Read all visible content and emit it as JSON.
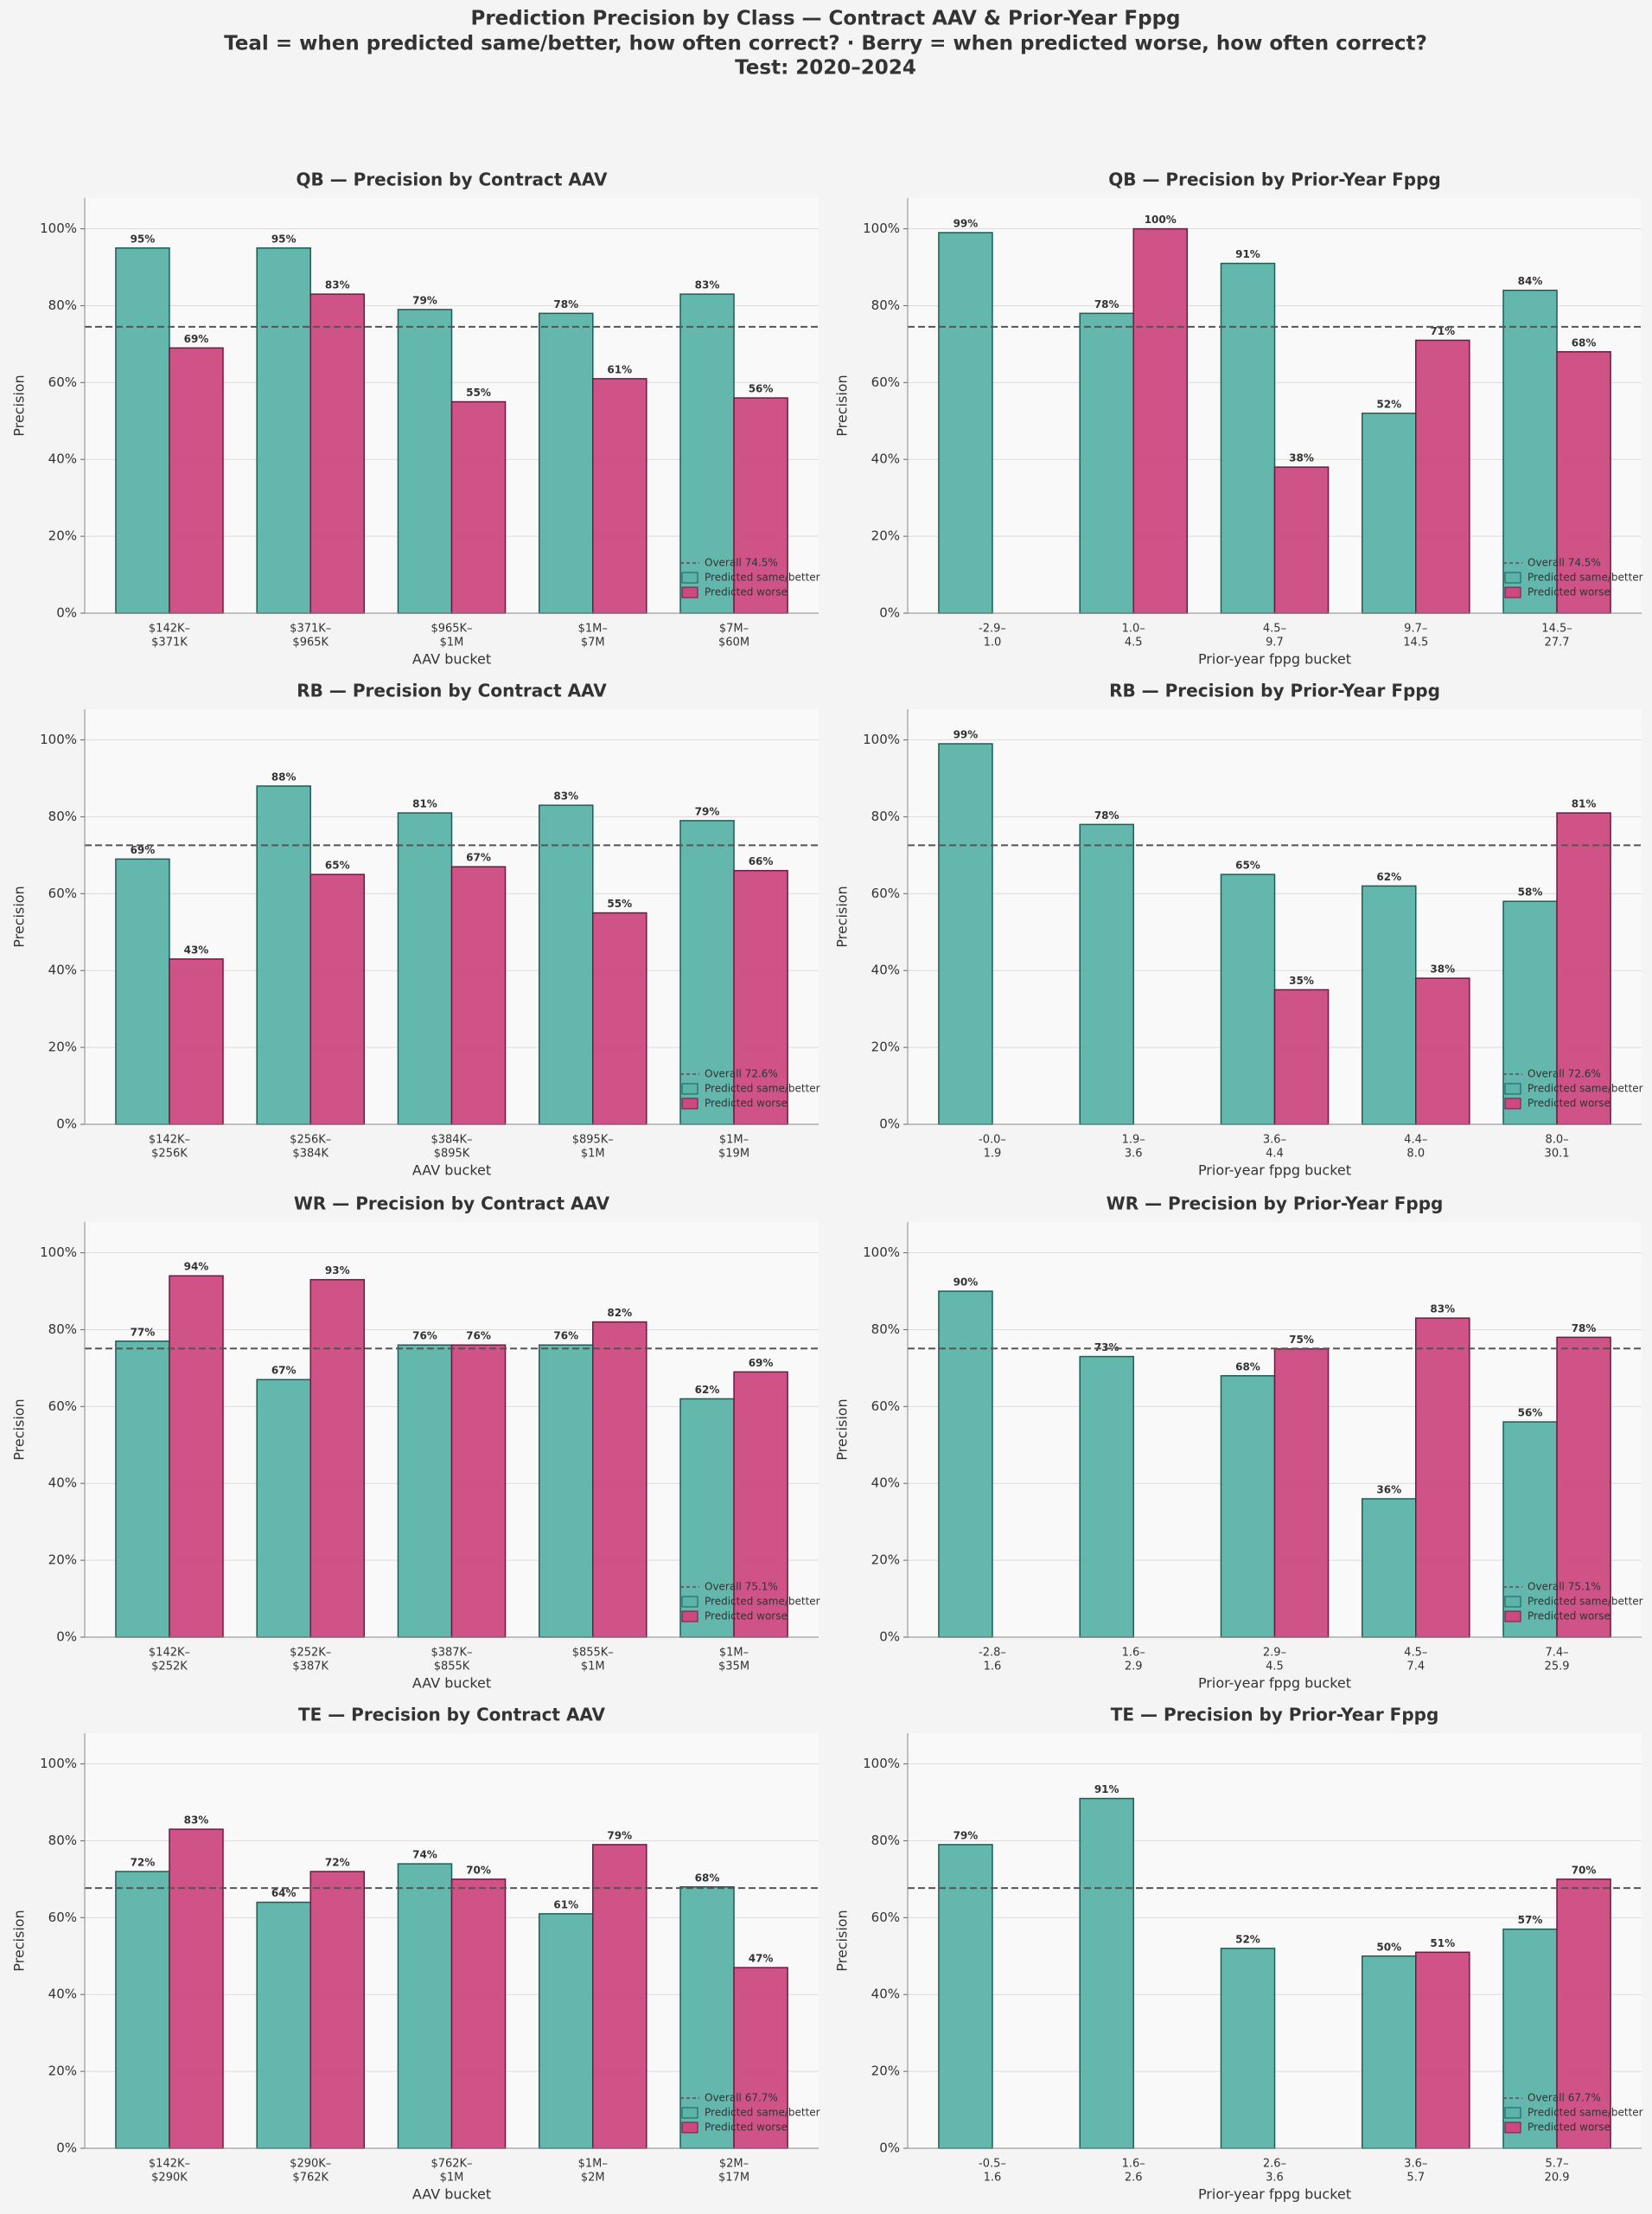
{
  "title": [
    "Prediction Precision by Class — Contract AAV & Prior-Year Fppg",
    "Teal = when predicted same/better, how often correct?  ·  Berry = when predicted worse, how often correct?",
    "Test: 2020–2024"
  ],
  "chart_data": [
    {
      "type": "bar",
      "title": "QB — Precision by Contract AAV",
      "xlabel": "AAV bucket",
      "ylabel": "Precision",
      "categories": [
        [
          "$142K–",
          "$371K"
        ],
        [
          "$371K–",
          "$965K"
        ],
        [
          "$965K–",
          "$1M"
        ],
        [
          "$1M–",
          "$7M"
        ],
        [
          "$7M–",
          "$60M"
        ]
      ],
      "series": [
        {
          "name": "Predicted same/better",
          "color": "#5bb3a9",
          "edgecolor": "#1d5e55",
          "values": [
            95,
            95,
            79,
            78,
            83
          ],
          "value_labels": [
            "95%",
            "95%",
            "79%",
            "78%",
            "83%"
          ]
        },
        {
          "name": "Predicted worse",
          "color": "#cc4a7f",
          "edgecolor": "#6e1a40",
          "values": [
            69,
            83,
            55,
            61,
            56
          ],
          "value_labels": [
            "69%",
            "83%",
            "55%",
            "61%",
            "56%"
          ]
        }
      ],
      "overall": {
        "value": 74.5,
        "label": "Overall 74.5%"
      },
      "ylim": [
        0,
        108
      ],
      "yticks": [
        {
          "value": 0,
          "label": "0%"
        },
        {
          "value": 20,
          "label": "20%"
        },
        {
          "value": 40,
          "label": "40%"
        },
        {
          "value": 60,
          "label": "60%"
        },
        {
          "value": 80,
          "label": "80%"
        },
        {
          "value": 100,
          "label": "100%"
        }
      ],
      "grid": true,
      "legend": "lower right"
    },
    {
      "type": "bar",
      "title": "QB — Precision by Prior-Year Fppg",
      "xlabel": "Prior-year fppg bucket",
      "ylabel": "Precision",
      "categories": [
        [
          "-2.9–",
          "1.0"
        ],
        [
          "1.0–",
          "4.5"
        ],
        [
          "4.5–",
          "9.7"
        ],
        [
          "9.7–",
          "14.5"
        ],
        [
          "14.5–",
          "27.7"
        ]
      ],
      "series": [
        {
          "name": "Predicted same/better",
          "color": "#5bb3a9",
          "edgecolor": "#1d5e55",
          "values": [
            99,
            78,
            91,
            52,
            84
          ],
          "value_labels": [
            "99%",
            "78%",
            "91%",
            "52%",
            "84%"
          ]
        },
        {
          "name": "Predicted worse",
          "color": "#cc4a7f",
          "edgecolor": "#6e1a40",
          "values": [
            null,
            100,
            38,
            71,
            68
          ],
          "value_labels": [
            null,
            "100%",
            "38%",
            "71%",
            "68%"
          ]
        }
      ],
      "overall": {
        "value": 74.5,
        "label": "Overall 74.5%"
      },
      "ylim": [
        0,
        108
      ],
      "yticks": [
        {
          "value": 0,
          "label": "0%"
        },
        {
          "value": 20,
          "label": "20%"
        },
        {
          "value": 40,
          "label": "40%"
        },
        {
          "value": 60,
          "label": "60%"
        },
        {
          "value": 80,
          "label": "80%"
        },
        {
          "value": 100,
          "label": "100%"
        }
      ],
      "grid": true,
      "legend": "lower right"
    },
    {
      "type": "bar",
      "title": "RB — Precision by Contract AAV",
      "xlabel": "AAV bucket",
      "ylabel": "Precision",
      "categories": [
        [
          "$142K–",
          "$256K"
        ],
        [
          "$256K–",
          "$384K"
        ],
        [
          "$384K–",
          "$895K"
        ],
        [
          "$895K–",
          "$1M"
        ],
        [
          "$1M–",
          "$19M"
        ]
      ],
      "series": [
        {
          "name": "Predicted same/better",
          "color": "#5bb3a9",
          "edgecolor": "#1d5e55",
          "values": [
            69,
            88,
            81,
            83,
            79
          ],
          "value_labels": [
            "69%",
            "88%",
            "81%",
            "83%",
            "79%"
          ]
        },
        {
          "name": "Predicted worse",
          "color": "#cc4a7f",
          "edgecolor": "#6e1a40",
          "values": [
            43,
            65,
            67,
            55,
            66
          ],
          "value_labels": [
            "43%",
            "65%",
            "67%",
            "55%",
            "66%"
          ]
        }
      ],
      "overall": {
        "value": 72.6,
        "label": "Overall 72.6%"
      },
      "ylim": [
        0,
        108
      ],
      "yticks": [
        {
          "value": 0,
          "label": "0%"
        },
        {
          "value": 20,
          "label": "20%"
        },
        {
          "value": 40,
          "label": "40%"
        },
        {
          "value": 60,
          "label": "60%"
        },
        {
          "value": 80,
          "label": "80%"
        },
        {
          "value": 100,
          "label": "100%"
        }
      ],
      "grid": true,
      "legend": "lower right"
    },
    {
      "type": "bar",
      "title": "RB — Precision by Prior-Year Fppg",
      "xlabel": "Prior-year fppg bucket",
      "ylabel": "Precision",
      "categories": [
        [
          "-0.0–",
          "1.9"
        ],
        [
          "1.9–",
          "3.6"
        ],
        [
          "3.6–",
          "4.4"
        ],
        [
          "4.4–",
          "8.0"
        ],
        [
          "8.0–",
          "30.1"
        ]
      ],
      "series": [
        {
          "name": "Predicted same/better",
          "color": "#5bb3a9",
          "edgecolor": "#1d5e55",
          "values": [
            99,
            78,
            65,
            62,
            58
          ],
          "value_labels": [
            "99%",
            "78%",
            "65%",
            "62%",
            "58%"
          ]
        },
        {
          "name": "Predicted worse",
          "color": "#cc4a7f",
          "edgecolor": "#6e1a40",
          "values": [
            null,
            null,
            35,
            38,
            81
          ],
          "value_labels": [
            null,
            null,
            "35%",
            "38%",
            "81%"
          ]
        }
      ],
      "overall": {
        "value": 72.6,
        "label": "Overall 72.6%"
      },
      "ylim": [
        0,
        108
      ],
      "yticks": [
        {
          "value": 0,
          "label": "0%"
        },
        {
          "value": 20,
          "label": "20%"
        },
        {
          "value": 40,
          "label": "40%"
        },
        {
          "value": 60,
          "label": "60%"
        },
        {
          "value": 80,
          "label": "80%"
        },
        {
          "value": 100,
          "label": "100%"
        }
      ],
      "grid": true,
      "legend": "lower right"
    },
    {
      "type": "bar",
      "title": "WR — Precision by Contract AAV",
      "xlabel": "AAV bucket",
      "ylabel": "Precision",
      "categories": [
        [
          "$142K–",
          "$252K"
        ],
        [
          "$252K–",
          "$387K"
        ],
        [
          "$387K–",
          "$855K"
        ],
        [
          "$855K–",
          "$1M"
        ],
        [
          "$1M–",
          "$35M"
        ]
      ],
      "series": [
        {
          "name": "Predicted same/better",
          "color": "#5bb3a9",
          "edgecolor": "#1d5e55",
          "values": [
            77,
            67,
            76,
            76,
            62
          ],
          "value_labels": [
            "77%",
            "67%",
            "76%",
            "76%",
            "62%"
          ]
        },
        {
          "name": "Predicted worse",
          "color": "#cc4a7f",
          "edgecolor": "#6e1a40",
          "values": [
            94,
            93,
            76,
            82,
            69
          ],
          "value_labels": [
            "94%",
            "93%",
            "76%",
            "82%",
            "69%"
          ]
        }
      ],
      "overall": {
        "value": 75.1,
        "label": "Overall 75.1%"
      },
      "ylim": [
        0,
        108
      ],
      "yticks": [
        {
          "value": 0,
          "label": "0%"
        },
        {
          "value": 20,
          "label": "20%"
        },
        {
          "value": 40,
          "label": "40%"
        },
        {
          "value": 60,
          "label": "60%"
        },
        {
          "value": 80,
          "label": "80%"
        },
        {
          "value": 100,
          "label": "100%"
        }
      ],
      "grid": true,
      "legend": "lower right"
    },
    {
      "type": "bar",
      "title": "WR — Precision by Prior-Year Fppg",
      "xlabel": "Prior-year fppg bucket",
      "ylabel": "Precision",
      "categories": [
        [
          "-2.8–",
          "1.6"
        ],
        [
          "1.6–",
          "2.9"
        ],
        [
          "2.9–",
          "4.5"
        ],
        [
          "4.5–",
          "7.4"
        ],
        [
          "7.4–",
          "25.9"
        ]
      ],
      "series": [
        {
          "name": "Predicted same/better",
          "color": "#5bb3a9",
          "edgecolor": "#1d5e55",
          "values": [
            90,
            73,
            68,
            36,
            56
          ],
          "value_labels": [
            "90%",
            "73%",
            "68%",
            "36%",
            "56%"
          ]
        },
        {
          "name": "Predicted worse",
          "color": "#cc4a7f",
          "edgecolor": "#6e1a40",
          "values": [
            null,
            null,
            75,
            83,
            78
          ],
          "value_labels": [
            null,
            null,
            "75%",
            "83%",
            "78%"
          ]
        }
      ],
      "overall": {
        "value": 75.1,
        "label": "Overall 75.1%"
      },
      "ylim": [
        0,
        108
      ],
      "yticks": [
        {
          "value": 0,
          "label": "0%"
        },
        {
          "value": 20,
          "label": "20%"
        },
        {
          "value": 40,
          "label": "40%"
        },
        {
          "value": 60,
          "label": "60%"
        },
        {
          "value": 80,
          "label": "80%"
        },
        {
          "value": 100,
          "label": "100%"
        }
      ],
      "grid": true,
      "legend": "lower right"
    },
    {
      "type": "bar",
      "title": "TE — Precision by Contract AAV",
      "xlabel": "AAV bucket",
      "ylabel": "Precision",
      "categories": [
        [
          "$142K–",
          "$290K"
        ],
        [
          "$290K–",
          "$762K"
        ],
        [
          "$762K–",
          "$1M"
        ],
        [
          "$1M–",
          "$2M"
        ],
        [
          "$2M–",
          "$17M"
        ]
      ],
      "series": [
        {
          "name": "Predicted same/better",
          "color": "#5bb3a9",
          "edgecolor": "#1d5e55",
          "values": [
            72,
            64,
            74,
            61,
            68
          ],
          "value_labels": [
            "72%",
            "64%",
            "74%",
            "61%",
            "68%"
          ]
        },
        {
          "name": "Predicted worse",
          "color": "#cc4a7f",
          "edgecolor": "#6e1a40",
          "values": [
            83,
            72,
            70,
            79,
            47
          ],
          "value_labels": [
            "83%",
            "72%",
            "70%",
            "79%",
            "47%"
          ]
        }
      ],
      "overall": {
        "value": 67.7,
        "label": "Overall 67.7%"
      },
      "ylim": [
        0,
        108
      ],
      "yticks": [
        {
          "value": 0,
          "label": "0%"
        },
        {
          "value": 20,
          "label": "20%"
        },
        {
          "value": 40,
          "label": "40%"
        },
        {
          "value": 60,
          "label": "60%"
        },
        {
          "value": 80,
          "label": "80%"
        },
        {
          "value": 100,
          "label": "100%"
        }
      ],
      "grid": true,
      "legend": "lower right"
    },
    {
      "type": "bar",
      "title": "TE — Precision by Prior-Year Fppg",
      "xlabel": "Prior-year fppg bucket",
      "ylabel": "Precision",
      "categories": [
        [
          "-0.5–",
          "1.6"
        ],
        [
          "1.6–",
          "2.6"
        ],
        [
          "2.6–",
          "3.6"
        ],
        [
          "3.6–",
          "5.7"
        ],
        [
          "5.7–",
          "20.9"
        ]
      ],
      "series": [
        {
          "name": "Predicted same/better",
          "color": "#5bb3a9",
          "edgecolor": "#1d5e55",
          "values": [
            79,
            91,
            52,
            50,
            57
          ],
          "value_labels": [
            "79%",
            "91%",
            "52%",
            "50%",
            "57%"
          ]
        },
        {
          "name": "Predicted worse",
          "color": "#cc4a7f",
          "edgecolor": "#6e1a40",
          "values": [
            null,
            null,
            null,
            51,
            70
          ],
          "value_labels": [
            null,
            null,
            null,
            "51%",
            "70%"
          ]
        }
      ],
      "overall": {
        "value": 67.7,
        "label": "Overall 67.7%"
      },
      "ylim": [
        0,
        108
      ],
      "yticks": [
        {
          "value": 0,
          "label": "0%"
        },
        {
          "value": 20,
          "label": "20%"
        },
        {
          "value": 40,
          "label": "40%"
        },
        {
          "value": 60,
          "label": "60%"
        },
        {
          "value": 80,
          "label": "80%"
        },
        {
          "value": 100,
          "label": "100%"
        }
      ],
      "grid": true,
      "legend": "lower right"
    }
  ]
}
